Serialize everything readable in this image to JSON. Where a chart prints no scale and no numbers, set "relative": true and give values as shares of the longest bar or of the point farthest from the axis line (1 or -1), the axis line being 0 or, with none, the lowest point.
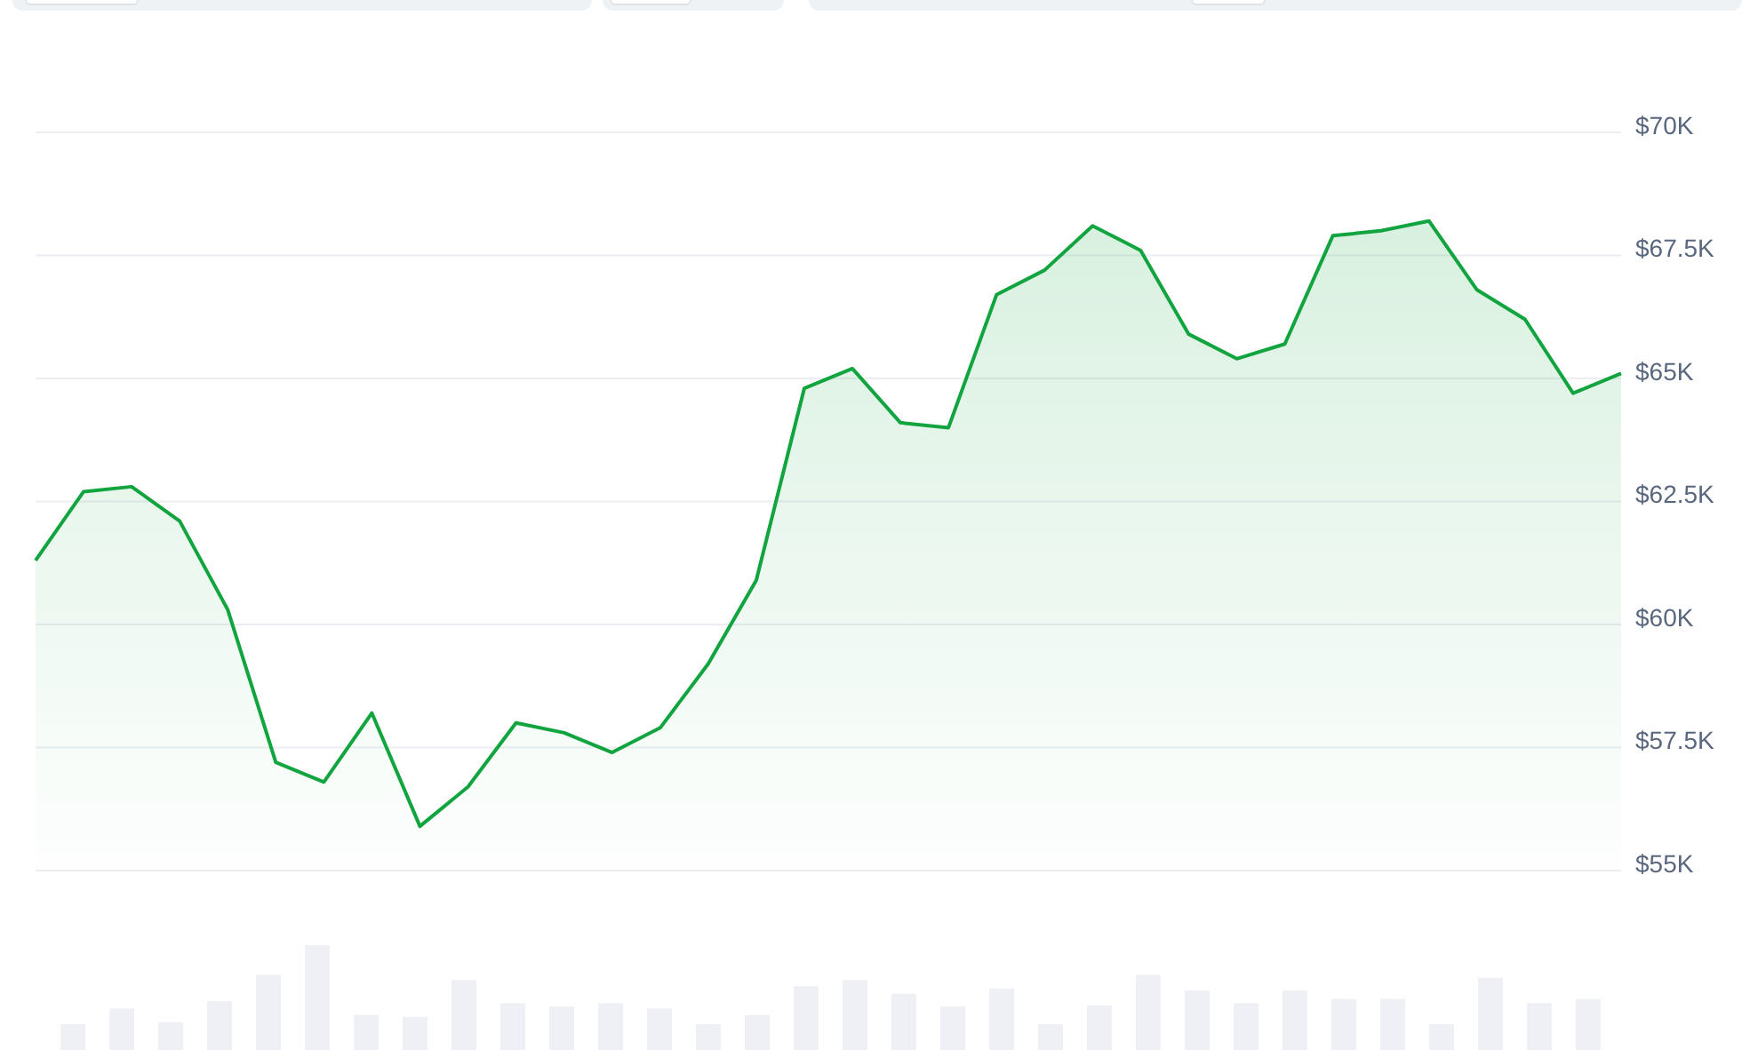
{
  "chart_data": [
    {
      "type": "area",
      "categories": [
        null,
        null,
        null,
        null,
        null,
        null,
        null,
        null,
        null,
        null,
        null,
        null,
        null,
        null,
        null,
        null,
        null,
        null,
        null,
        null,
        null,
        null,
        null,
        null,
        null,
        null,
        null,
        null,
        null,
        null,
        null,
        null,
        null,
        null
      ],
      "series": [
        {
          "color": "#11a43f",
          "values": [
            61300,
            62700,
            62800,
            62100,
            60300,
            57200,
            56800,
            58200,
            55900,
            56700,
            58000,
            57800,
            57400,
            57900,
            59200,
            60900,
            64800,
            65200,
            64100,
            64000,
            66700,
            67200,
            68100,
            67600,
            65900,
            65400,
            65700,
            67900,
            68000,
            68200,
            66800,
            66200,
            64700,
            65100
          ]
        }
      ],
      "ylim": [
        55000,
        70000
      ],
      "yticks": [
        {
          "value": 55000,
          "label": "$55K"
        },
        {
          "value": 57500,
          "label": "$57.5K"
        },
        {
          "value": 60000,
          "label": "$60K"
        },
        {
          "value": 62500,
          "label": "$62.5K"
        },
        {
          "value": 65000,
          "label": "$65K"
        },
        {
          "value": 67500,
          "label": "$67.5K"
        },
        {
          "value": 70000,
          "label": "$70K"
        }
      ],
      "grid": "y",
      "tick_labels": "y"
    },
    {
      "type": "bar",
      "categories": [
        null,
        null,
        null,
        null,
        null,
        null,
        null,
        null,
        null,
        null,
        null,
        null,
        null,
        null,
        null,
        null,
        null,
        null,
        null,
        null,
        null,
        null,
        null,
        null,
        null,
        null,
        null,
        null,
        null,
        null,
        null,
        null
      ],
      "values": [
        0.25,
        0.4,
        0.27,
        0.47,
        0.72,
        1,
        0.34,
        0.32,
        0.67,
        0.45,
        0.42,
        0.45,
        0.4,
        0.25,
        0.34,
        0.61,
        0.67,
        0.54,
        0.42,
        0.59,
        0.25,
        0.43,
        0.72,
        0.57,
        0.45,
        0.57,
        0.49,
        0.49,
        0.25,
        0.69,
        0.45,
        0.49
      ],
      "color": "#eef0f5",
      "relative": true,
      "tick_labels": false
    }
  ]
}
